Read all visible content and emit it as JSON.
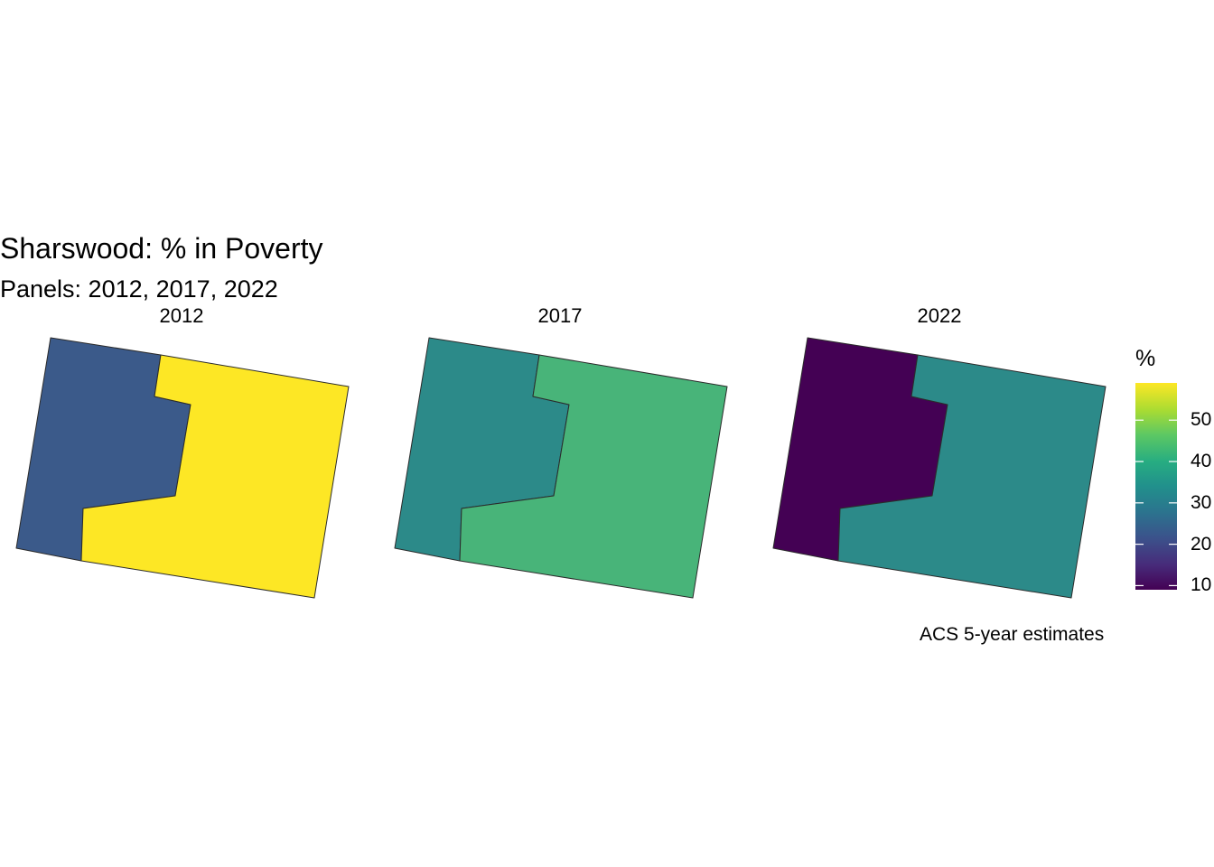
{
  "title": "Sharswood: % in Poverty",
  "subtitle": "Panels: 2012, 2017, 2022",
  "caption": "ACS 5-year estimates",
  "legend": {
    "title": "%",
    "ticks": [
      "10",
      "20",
      "30",
      "40",
      "50"
    ],
    "range": [
      9,
      59
    ],
    "palette": "viridis",
    "colors": [
      "#440154",
      "#3B528B",
      "#21908C",
      "#5DC863",
      "#FDE725"
    ]
  },
  "boundary_color": "#2b2b2b",
  "panels": [
    {
      "label": "2012",
      "regions": [
        {
          "name": "west tract",
          "percent": 22,
          "color": "#3B5A8A"
        },
        {
          "name": "east tract",
          "percent": 59,
          "color": "#FDE725"
        }
      ]
    },
    {
      "label": "2017",
      "regions": [
        {
          "name": "west tract",
          "percent": 32,
          "color": "#2C8A89"
        },
        {
          "name": "east tract",
          "percent": 45,
          "color": "#48B479"
        }
      ]
    },
    {
      "label": "2022",
      "regions": [
        {
          "name": "west tract",
          "percent": 9,
          "color": "#440154"
        },
        {
          "name": "east tract",
          "percent": 32,
          "color": "#2C8A89"
        }
      ]
    }
  ]
}
